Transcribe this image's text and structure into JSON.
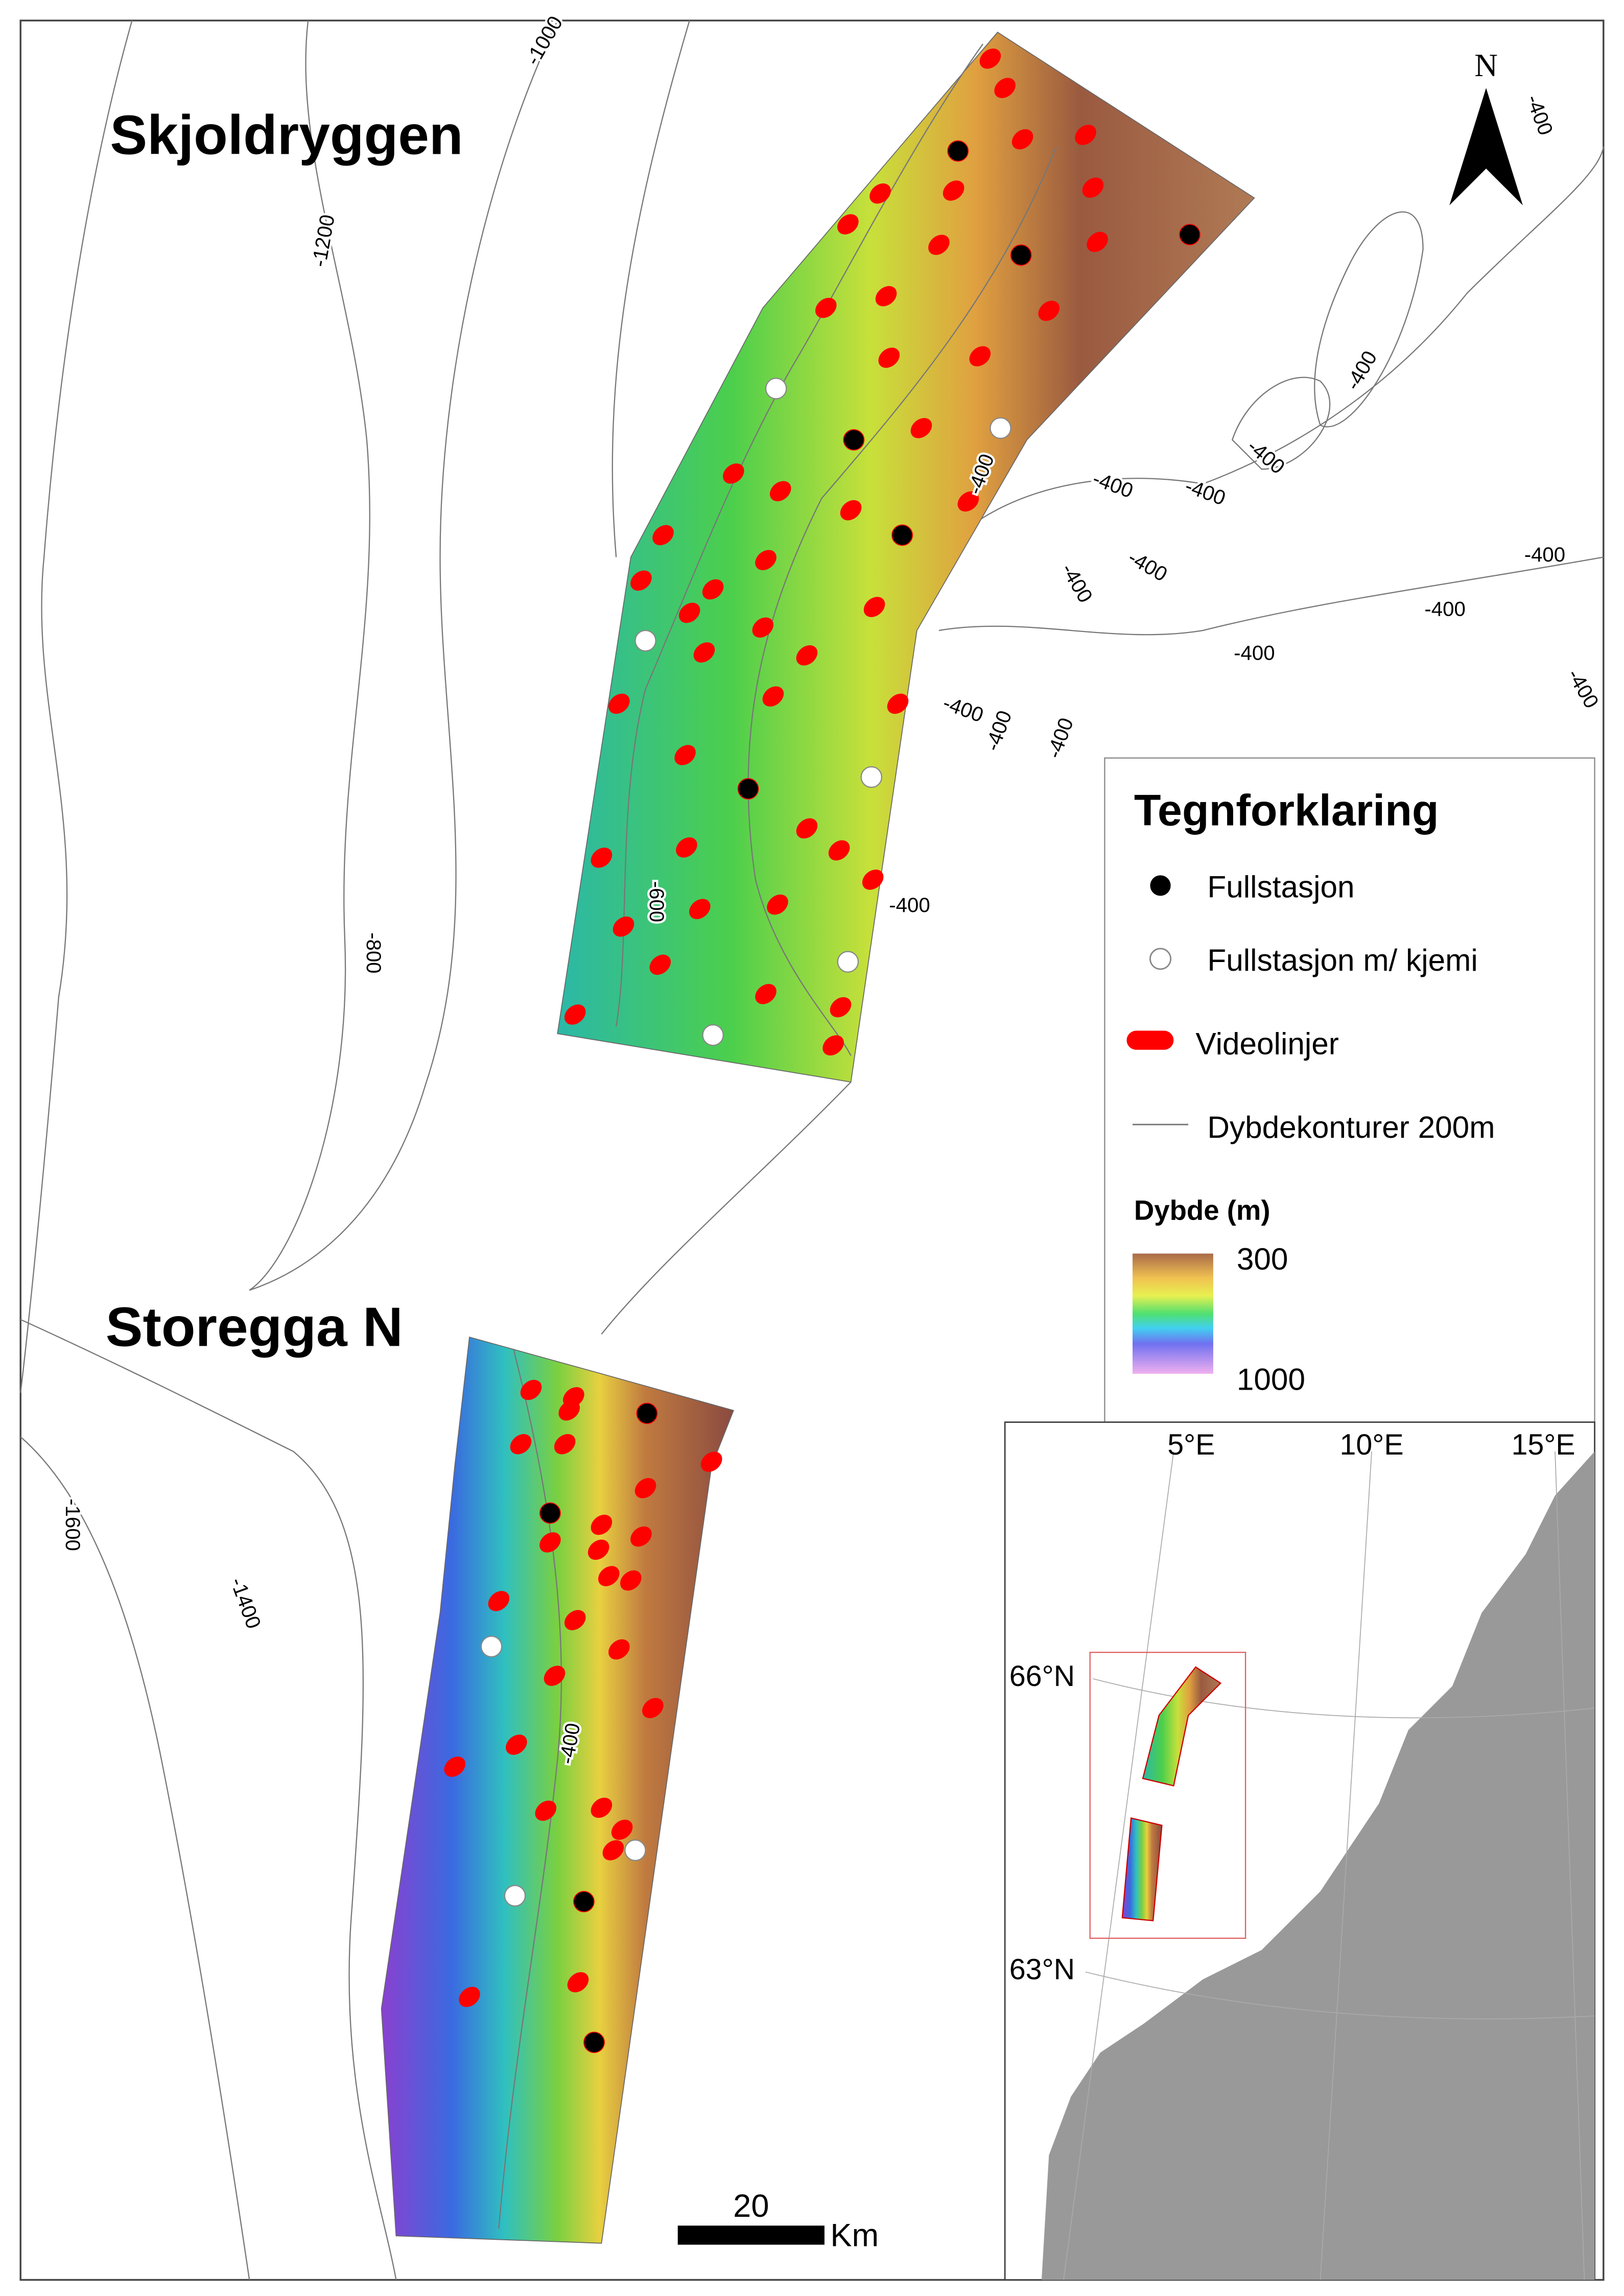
{
  "map": {
    "area_labels": [
      "Skjoldryggen",
      "Storegga N"
    ],
    "north": "N",
    "contour_labels": [
      "-1000",
      "-1200",
      "-800",
      "-600",
      "-400",
      "-400",
      "-400",
      "-400",
      "-400",
      "-400",
      "-400",
      "-400",
      "-400",
      "-400",
      "-400",
      "-400",
      "-400",
      "-400",
      "-400",
      "-400",
      "-1600",
      "-1400",
      "-400"
    ],
    "legend": {
      "title": "Tegnforklaring",
      "items": [
        "Fullstasjon",
        "Fullstasjon m/ kjemi",
        "Videolinjer",
        "Dybdekonturer 200m"
      ],
      "depth_title": "Dybde (m)",
      "depth_range": [
        300,
        1000
      ]
    },
    "scale_bar": {
      "value": 20,
      "unit": "Km"
    },
    "inset": {
      "lon_labels": [
        "5°E",
        "10°E",
        "15°E"
      ],
      "lat_labels": [
        "66°N",
        "63°N"
      ]
    }
  }
}
